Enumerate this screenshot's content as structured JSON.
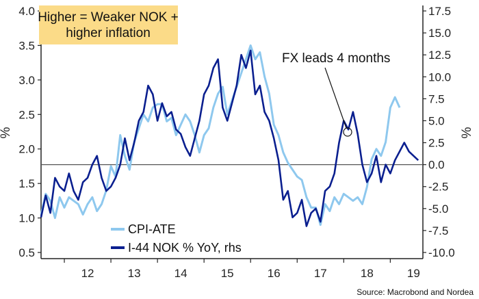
{
  "colors": {
    "cpi": "#8ec8ee",
    "nok": "#0a1f8f",
    "callout_bg": "#fbdb88",
    "zero_line": "#555555",
    "axis": "#222222"
  },
  "chart_data": {
    "type": "line",
    "title": "",
    "left_axis": {
      "label": "%",
      "ylim": [
        0.5,
        4.0
      ],
      "ticks": [
        "0.5",
        "1.0",
        "1.5",
        "2.0",
        "2.5",
        "3.0",
        "3.5",
        "4.0"
      ]
    },
    "right_axis": {
      "label": "%",
      "ylim": [
        -10.0,
        17.5
      ],
      "ticks": [
        "-10.0",
        "-7.5",
        "-5.0",
        "-2.5",
        "0.0",
        "2.5",
        "5.0",
        "7.5",
        "10.0",
        "12.5",
        "15.0",
        "17.5"
      ]
    },
    "x_axis": {
      "xlim": [
        2011.5,
        2019.7
      ],
      "ticks": [
        "12",
        "13",
        "14",
        "15",
        "16",
        "17",
        "18",
        "19"
      ]
    },
    "zero_line_rhs": 0.0,
    "callout": {
      "line1": "Higher = Weaker NOK +",
      "line2": "higher inflation"
    },
    "annotation": {
      "text": "FX leads 4 months"
    },
    "legend": [
      "CPI-ATE",
      "I-44 NOK % YoY, rhs"
    ],
    "source": "Source: Macrobond and Nordea",
    "series": [
      {
        "name": "CPI-ATE",
        "axis": "left",
        "x": [
          2011.5,
          2011.6,
          2011.7,
          2011.8,
          2011.9,
          2012.0,
          2012.1,
          2012.2,
          2012.3,
          2012.4,
          2012.5,
          2012.6,
          2012.7,
          2012.8,
          2012.9,
          2013.0,
          2013.1,
          2013.2,
          2013.3,
          2013.4,
          2013.5,
          2013.6,
          2013.7,
          2013.8,
          2013.9,
          2014.0,
          2014.1,
          2014.2,
          2014.3,
          2014.4,
          2014.5,
          2014.6,
          2014.7,
          2014.8,
          2014.9,
          2015.0,
          2015.1,
          2015.2,
          2015.3,
          2015.4,
          2015.5,
          2015.6,
          2015.7,
          2015.8,
          2015.9,
          2016.0,
          2016.1,
          2016.2,
          2016.3,
          2016.4,
          2016.5,
          2016.6,
          2016.7,
          2016.8,
          2016.9,
          2017.0,
          2017.1,
          2017.2,
          2017.3,
          2017.4,
          2017.5,
          2017.6,
          2017.7,
          2017.8,
          2017.9,
          2018.0,
          2018.1,
          2018.2,
          2018.3,
          2018.4,
          2018.5,
          2018.6,
          2018.7,
          2018.8,
          2018.9,
          2019.0,
          2019.1,
          2019.2
        ],
        "values": [
          1.05,
          1.35,
          1.25,
          1.0,
          1.3,
          1.15,
          1.3,
          1.25,
          1.2,
          1.05,
          1.2,
          1.3,
          1.1,
          1.2,
          1.4,
          1.75,
          1.6,
          2.2,
          1.9,
          1.7,
          2.1,
          2.3,
          2.5,
          2.4,
          2.6,
          2.65,
          2.65,
          2.4,
          2.45,
          2.2,
          2.35,
          2.5,
          2.4,
          2.2,
          1.95,
          2.2,
          2.3,
          2.6,
          2.8,
          2.9,
          2.5,
          2.7,
          2.9,
          3.1,
          3.3,
          3.5,
          3.3,
          3.4,
          3.05,
          2.8,
          2.35,
          2.2,
          1.95,
          1.8,
          1.7,
          1.6,
          1.55,
          1.3,
          1.15,
          1.15,
          0.9,
          1.2,
          1.1,
          1.3,
          1.2,
          1.35,
          1.3,
          1.25,
          1.3,
          1.2,
          1.45,
          1.85,
          2.0,
          1.9,
          2.1,
          2.6,
          2.75,
          2.6
        ]
      },
      {
        "name": "I-44 NOK % YoY, rhs",
        "axis": "right",
        "x": [
          2011.5,
          2011.6,
          2011.7,
          2011.8,
          2011.9,
          2012.0,
          2012.1,
          2012.2,
          2012.3,
          2012.4,
          2012.5,
          2012.6,
          2012.7,
          2012.8,
          2012.9,
          2013.0,
          2013.1,
          2013.2,
          2013.3,
          2013.4,
          2013.5,
          2013.6,
          2013.7,
          2013.8,
          2013.9,
          2014.0,
          2014.1,
          2014.2,
          2014.3,
          2014.4,
          2014.5,
          2014.6,
          2014.7,
          2014.8,
          2014.9,
          2015.0,
          2015.1,
          2015.2,
          2015.3,
          2015.4,
          2015.5,
          2015.6,
          2015.7,
          2015.8,
          2015.9,
          2016.0,
          2016.1,
          2016.2,
          2016.3,
          2016.4,
          2016.5,
          2016.6,
          2016.7,
          2016.8,
          2016.9,
          2017.0,
          2017.1,
          2017.2,
          2017.3,
          2017.4,
          2017.5,
          2017.6,
          2017.7,
          2017.8,
          2017.9,
          2018.0,
          2018.1,
          2018.2,
          2018.3,
          2018.4,
          2018.5,
          2018.6,
          2018.7,
          2018.8,
          2018.9,
          2019.0,
          2019.1,
          2019.2,
          2019.3,
          2019.4,
          2019.6
        ],
        "values": [
          -6.0,
          -3.5,
          -5.5,
          -1.5,
          -2.5,
          -3.0,
          -1.0,
          -3.0,
          -4.0,
          -2.0,
          -1.5,
          0.0,
          1.0,
          -1.5,
          -3.0,
          -2.5,
          -1.5,
          0.0,
          3.0,
          0.5,
          2.5,
          5.0,
          6.0,
          9.0,
          8.0,
          5.0,
          7.0,
          5.5,
          6.0,
          4.0,
          3.5,
          2.0,
          1.0,
          3.0,
          5.0,
          8.0,
          9.0,
          11.0,
          12.0,
          6.5,
          5.0,
          7.0,
          9.0,
          12.5,
          11.0,
          13.0,
          8.0,
          9.0,
          6.0,
          5.0,
          3.0,
          0.5,
          -4.0,
          -3.0,
          -6.0,
          -5.5,
          -4.0,
          -7.0,
          -5.5,
          -5.0,
          -6.5,
          -3.0,
          -2.5,
          -1.0,
          2.5,
          5.0,
          4.0,
          6.0,
          3.5,
          0.0,
          -2.0,
          -1.0,
          1.0,
          -2.0,
          0.0,
          -1.0,
          0.5,
          1.5,
          2.5,
          1.5,
          0.5
        ]
      }
    ]
  }
}
